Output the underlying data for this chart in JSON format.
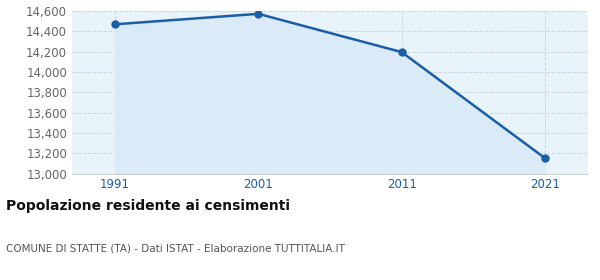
{
  "years": [
    1991,
    2001,
    2011,
    2021
  ],
  "values": [
    14471,
    14574,
    14197,
    13152
  ],
  "ylim": [
    13000,
    14600
  ],
  "yticks": [
    13000,
    13200,
    13400,
    13600,
    13800,
    14000,
    14200,
    14400,
    14600
  ],
  "line_color": "#1a5ea8",
  "fill_color": "#daeaf6",
  "marker_size": 5,
  "line_width": 1.8,
  "grid_color": "#c8d8e8",
  "background_color": "#e8f3fa",
  "title": "Popolazione residente ai censimenti",
  "title_fontsize": 10,
  "subtitle": "COMUNE DI STATTE (TA) - Dati ISTAT - Elaborazione TUTTITALIA.IT",
  "subtitle_fontsize": 7.5,
  "xtick_color": "#1a5ea8",
  "ytick_color": "#666666",
  "tick_fontsize": 8.5
}
